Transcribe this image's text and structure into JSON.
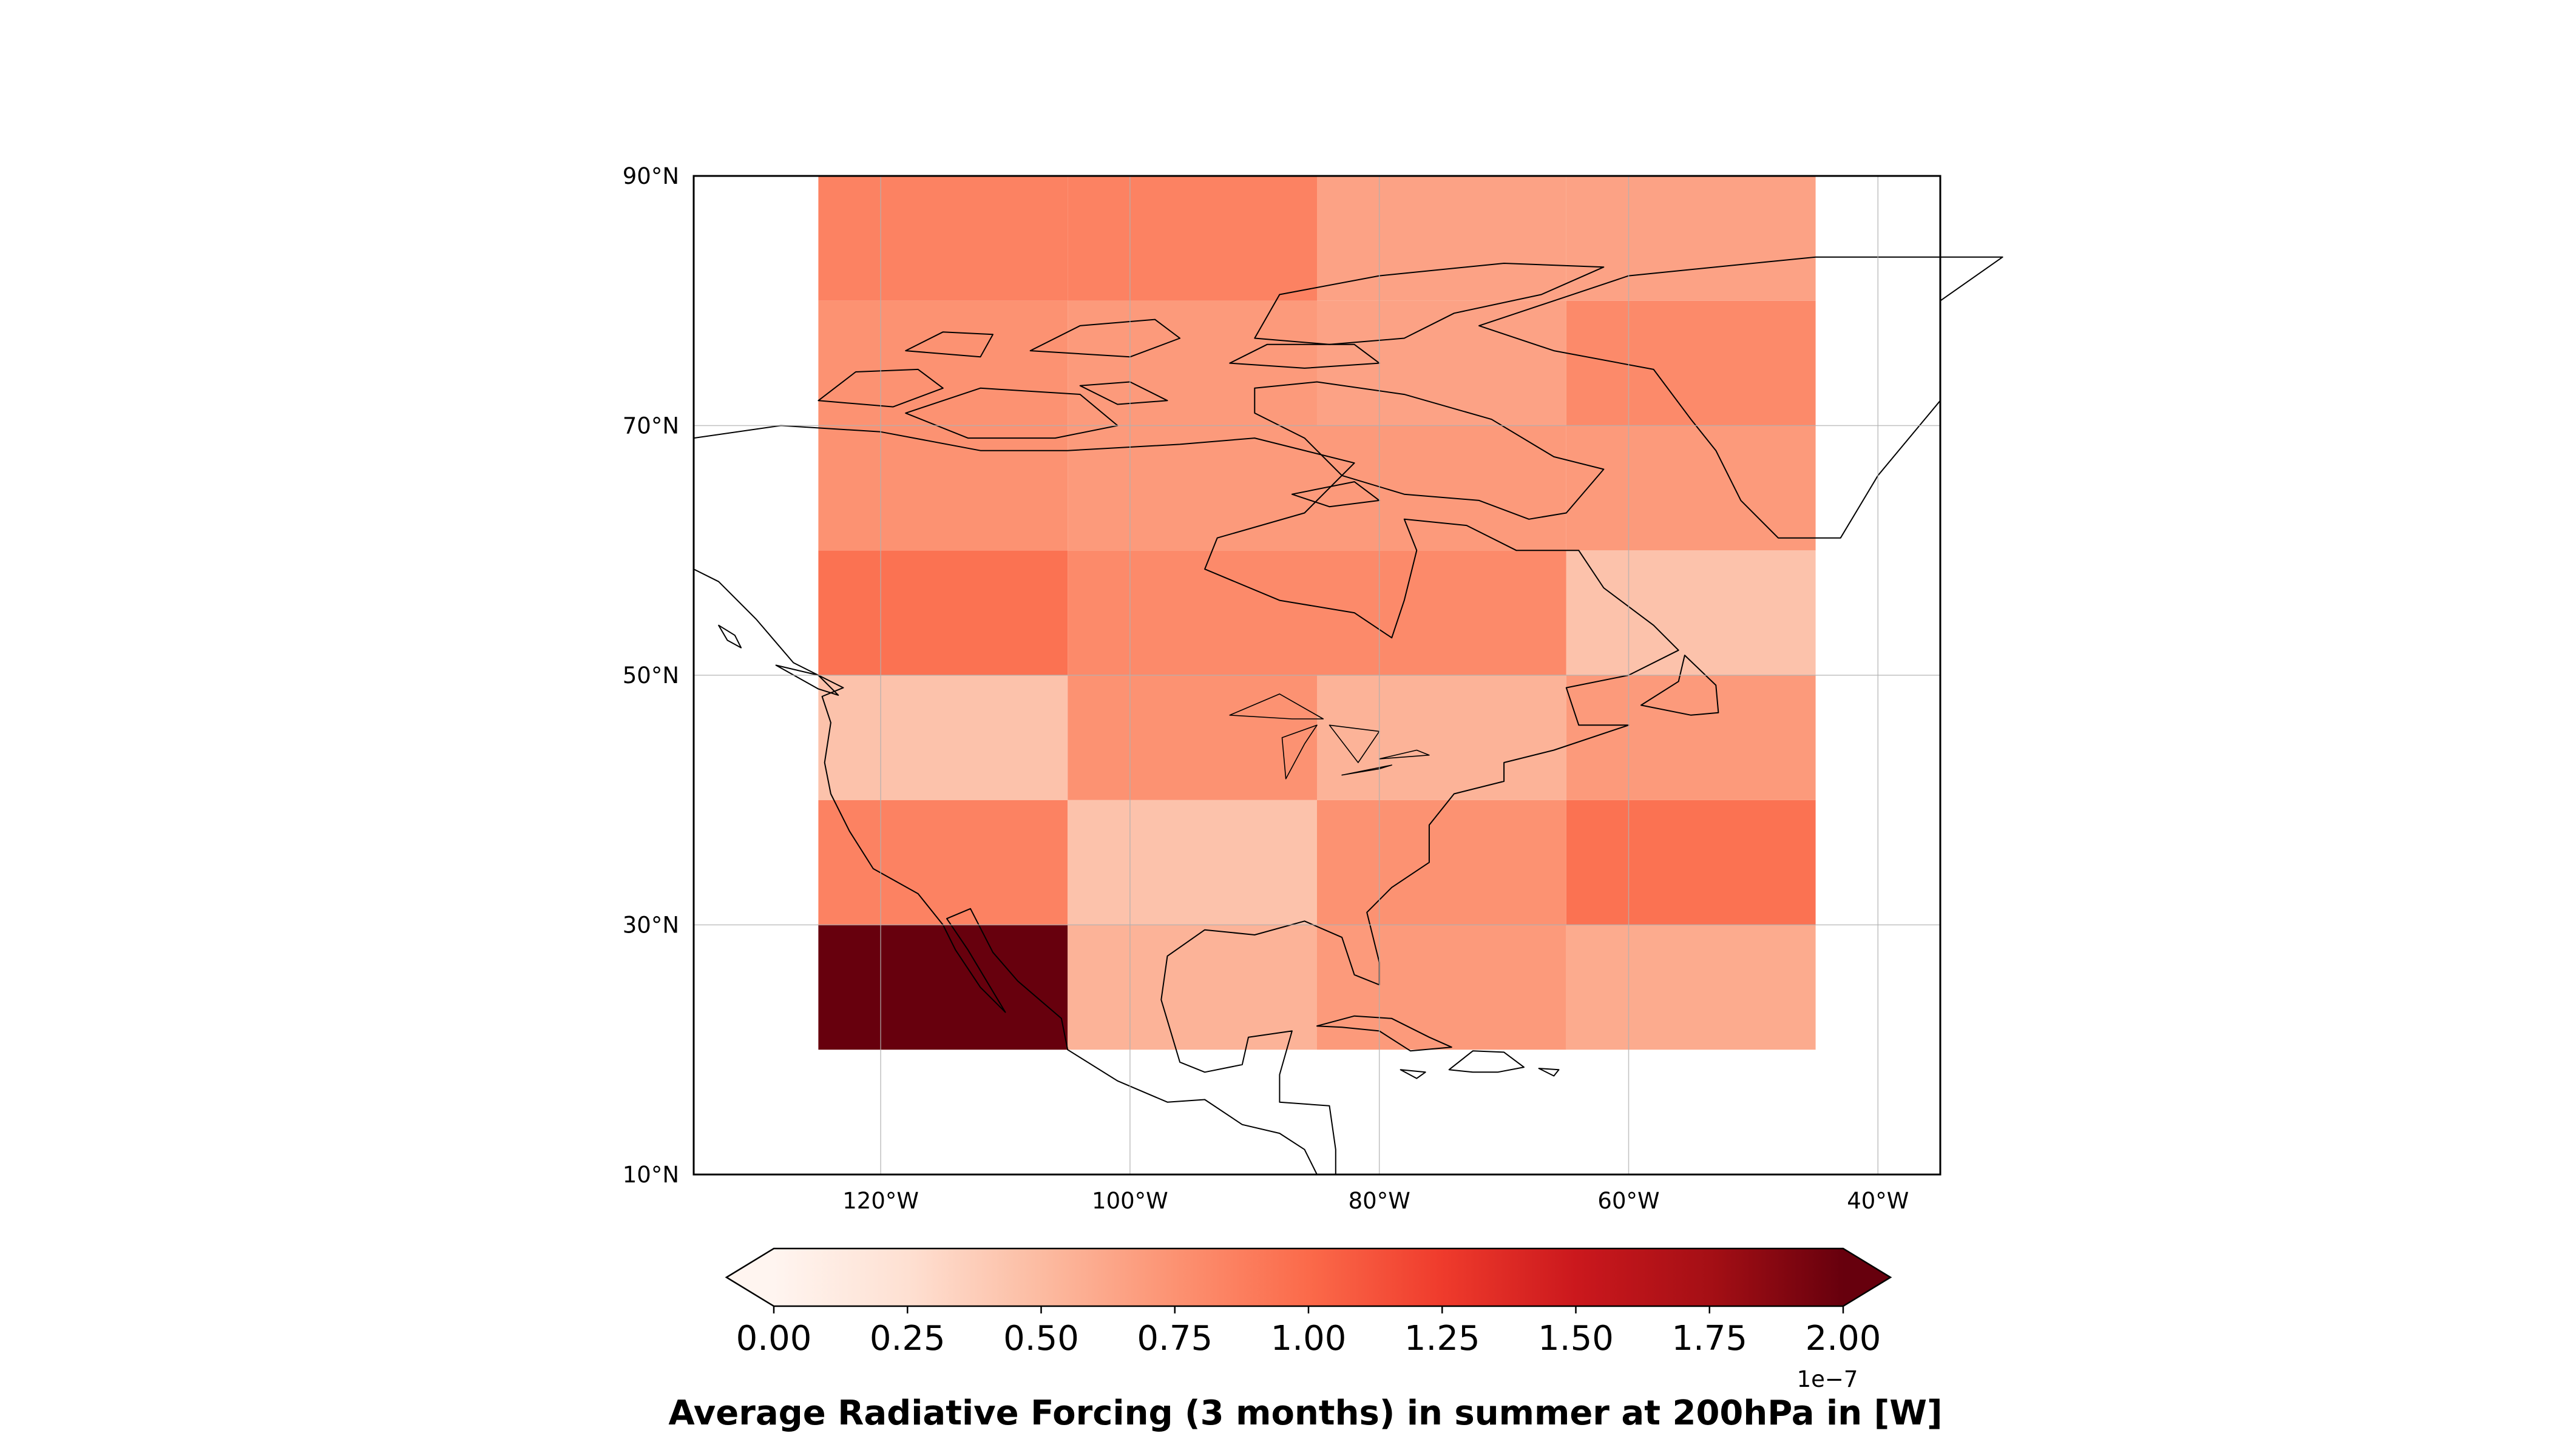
{
  "chart_data": {
    "type": "heatmap",
    "projection": "PlateCarree",
    "map": {
      "lon_range": [
        -135,
        -35
      ],
      "lat_range": [
        10,
        90
      ],
      "grid": true,
      "coastlines": true,
      "x_ticks": [
        -120,
        -100,
        -80,
        -60,
        -40
      ],
      "y_ticks": [
        10,
        30,
        50,
        70,
        90
      ],
      "x_tick_labels": [
        "120°W",
        "100°W",
        "80°W",
        "60°W",
        "40°W"
      ],
      "y_tick_labels": [
        "10°N",
        "30°N",
        "50°N",
        "70°N",
        "90°N"
      ]
    },
    "grid_cells": {
      "lon_edges": [
        -125,
        -105,
        -85,
        -65,
        -45
      ],
      "lat_edges": [
        20,
        30,
        40,
        50,
        60,
        70,
        80,
        90
      ],
      "value_scale": 1e-07,
      "values_by_row_south_to_north": [
        [
          2.0,
          0.55,
          0.7,
          0.6
        ],
        [
          0.85,
          0.45,
          0.75,
          0.95
        ],
        [
          0.45,
          0.75,
          0.55,
          0.7
        ],
        [
          0.95,
          0.8,
          0.8,
          0.45
        ],
        [
          0.75,
          0.7,
          0.7,
          0.7
        ],
        [
          0.75,
          0.7,
          0.65,
          0.8
        ],
        [
          0.85,
          0.85,
          0.65,
          0.65
        ]
      ]
    },
    "colorbar": {
      "cmap": "Reds",
      "vmin": 0.0,
      "vmax": 2.0,
      "extend": "both",
      "tick_labels": [
        "0.00",
        "0.25",
        "0.50",
        "0.75",
        "1.00",
        "1.25",
        "1.50",
        "1.75",
        "2.00"
      ],
      "offset_label": "1e−7",
      "label": "Average Radiative Forcing (3 months) in summer at 200hPa in [W]"
    }
  }
}
